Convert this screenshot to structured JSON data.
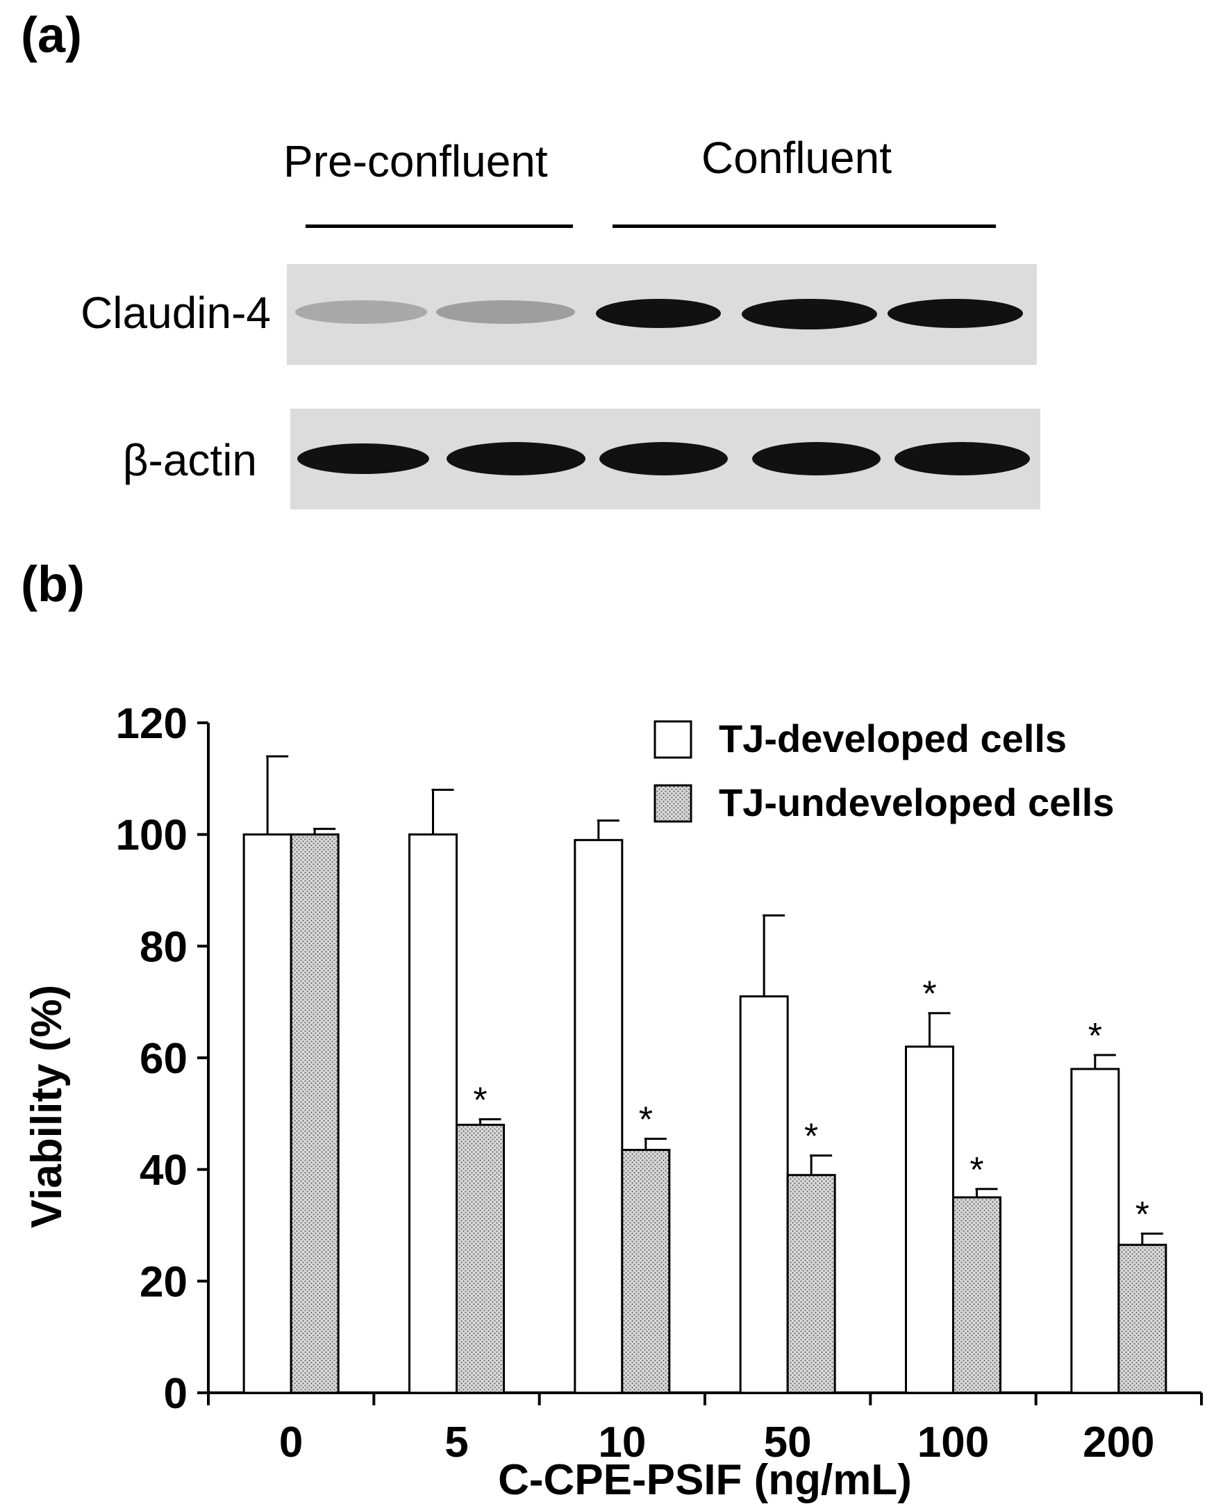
{
  "panels": {
    "a_label": "(a)",
    "b_label": "(b)"
  },
  "blot": {
    "groups": [
      "Pre-confluent",
      "Confluent"
    ],
    "rows": [
      {
        "label": "Claudin-4",
        "band_intensity": [
          0.25,
          0.3,
          1.0,
          1.0,
          1.0
        ]
      },
      {
        "label": "β-actin",
        "band_intensity": [
          1.0,
          1.0,
          1.0,
          1.0,
          1.0
        ]
      }
    ]
  },
  "chart_data": {
    "type": "bar",
    "xlabel": "C-CPE-PSIF (ng/mL)",
    "ylabel": "Viability (%)",
    "ylim": [
      0,
      120
    ],
    "yticks": [
      0,
      20,
      40,
      60,
      80,
      100,
      120
    ],
    "categories": [
      "0",
      "5",
      "10",
      "50",
      "100",
      "200"
    ],
    "legend_position": "top-right",
    "series": [
      {
        "name": "TJ-developed cells",
        "fill": "#ffffff",
        "values": [
          100,
          100,
          99,
          71,
          62,
          58
        ],
        "errors": [
          14,
          8,
          3.5,
          14.5,
          6,
          2.5
        ],
        "significant": [
          false,
          false,
          false,
          false,
          true,
          true
        ]
      },
      {
        "name": "TJ-undeveloped cells",
        "fill": "dotted",
        "values": [
          100,
          48,
          43.5,
          39,
          35,
          26.5
        ],
        "errors": [
          1,
          1,
          2,
          3.5,
          1.5,
          2
        ],
        "significant": [
          false,
          true,
          true,
          true,
          true,
          true
        ]
      }
    ],
    "significance_mark": "*"
  },
  "colors": {
    "ink": "#000000",
    "blot_background": "#dcdcdc",
    "dotted_fill_base": "#d8d8d8"
  }
}
